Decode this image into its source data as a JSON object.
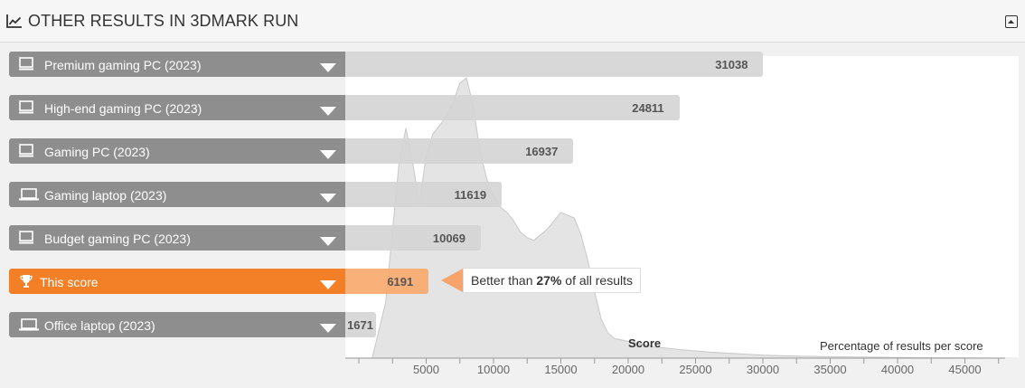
{
  "header": {
    "title": "OTHER RESULTS IN 3DMARK RUN",
    "icon": "line-chart-icon",
    "collapse_icon": "collapse-icon"
  },
  "callout": {
    "prefix": "Better than ",
    "percent": "27%",
    "suffix": " of all results"
  },
  "chart_data": {
    "type": "bar",
    "x_axis_title": "Score",
    "density_label": "Percentage of results per score",
    "xlim": [
      0,
      48000
    ],
    "ticks": [
      5000,
      10000,
      15000,
      20000,
      25000,
      30000,
      35000,
      40000,
      45000
    ],
    "tick_labels": [
      "5000",
      "10000",
      "15000",
      "20000",
      "25000",
      "30000",
      "35000",
      "40000",
      "45000"
    ],
    "bars": [
      {
        "label": "Premium gaming PC (2023)",
        "value": 31038,
        "value_label": "31038",
        "icon": "desktop-icon",
        "highlight": false
      },
      {
        "label": "High-end gaming PC (2023)",
        "value": 24811,
        "value_label": "24811",
        "icon": "desktop-icon",
        "highlight": false
      },
      {
        "label": "Gaming PC (2023)",
        "value": 16937,
        "value_label": "16937",
        "icon": "desktop-icon",
        "highlight": false
      },
      {
        "label": "Gaming laptop (2023)",
        "value": 11619,
        "value_label": "11619",
        "icon": "laptop-icon",
        "highlight": false
      },
      {
        "label": "Budget gaming PC (2023)",
        "value": 10069,
        "value_label": "10069",
        "icon": "desktop-icon",
        "highlight": false
      },
      {
        "label": "This score",
        "value": 6191,
        "value_label": "6191",
        "icon": "trophy-icon",
        "highlight": true
      },
      {
        "label": "Office laptop (2023)",
        "value": 1671,
        "value_label": "1671",
        "icon": "laptop-icon",
        "highlight": false
      }
    ],
    "distribution": {
      "x": [
        0,
        2000,
        3000,
        3600,
        4000,
        4500,
        5000,
        5500,
        6000,
        6500,
        7000,
        7500,
        8000,
        8500,
        9000,
        9500,
        10000,
        10500,
        11000,
        11500,
        12000,
        12500,
        13000,
        13500,
        14000,
        15000,
        16000,
        17000,
        17500,
        18000,
        18500,
        19000,
        19500,
        20000,
        21000,
        22000,
        23000,
        25000,
        27000,
        29000,
        31000,
        33000,
        35000,
        38000,
        42000,
        46000,
        48000
      ],
      "y": [
        0,
        0,
        20,
        50,
        70,
        82,
        70,
        55,
        72,
        80,
        83,
        86,
        91,
        98,
        100,
        90,
        74,
        64,
        58,
        54,
        52,
        49,
        45,
        43,
        42,
        46,
        52,
        50,
        44,
        35,
        24,
        14,
        9,
        7,
        6,
        5,
        4,
        3,
        2.2,
        1.6,
        1.1,
        0.8,
        0.6,
        0.4,
        0.2,
        0.1,
        0
      ]
    },
    "colors": {
      "label_bg": "#8e8e8e",
      "highlight": "#f38026",
      "bar": "#d4d4d4",
      "distribution": "#e4e4e4"
    }
  }
}
